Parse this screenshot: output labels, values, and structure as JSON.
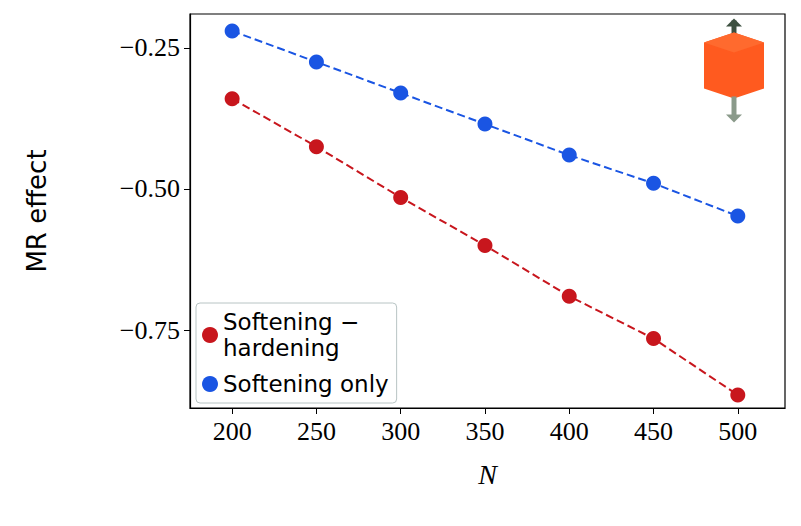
{
  "chart_data": {
    "type": "line",
    "x_label": "N",
    "y_label": "MR effect",
    "x": [
      200,
      250,
      300,
      350,
      400,
      450,
      500
    ],
    "series": [
      {
        "name": "Softening − hardening",
        "color": "#c8161d",
        "values": [
          -0.34,
          -0.425,
          -0.515,
          -0.6,
          -0.69,
          -0.765,
          -0.865
        ]
      },
      {
        "name": "Softening only",
        "color": "#1a55e3",
        "values": [
          -0.22,
          -0.275,
          -0.33,
          -0.385,
          -0.44,
          -0.49,
          -0.548
        ]
      }
    ],
    "xlim": [
      175,
      528
    ],
    "xticks": [
      200,
      250,
      300,
      350,
      400,
      450,
      500
    ],
    "ylim": [
      -0.888,
      -0.19
    ],
    "yticks": [
      {
        "value": -0.75,
        "label": "−0.75"
      },
      {
        "value": -0.5,
        "label": "−0.50"
      },
      {
        "value": -0.25,
        "label": "−0.25"
      }
    ],
    "grid": false,
    "legend": "lower left",
    "marker": "circle",
    "line_style": "dashed"
  }
}
